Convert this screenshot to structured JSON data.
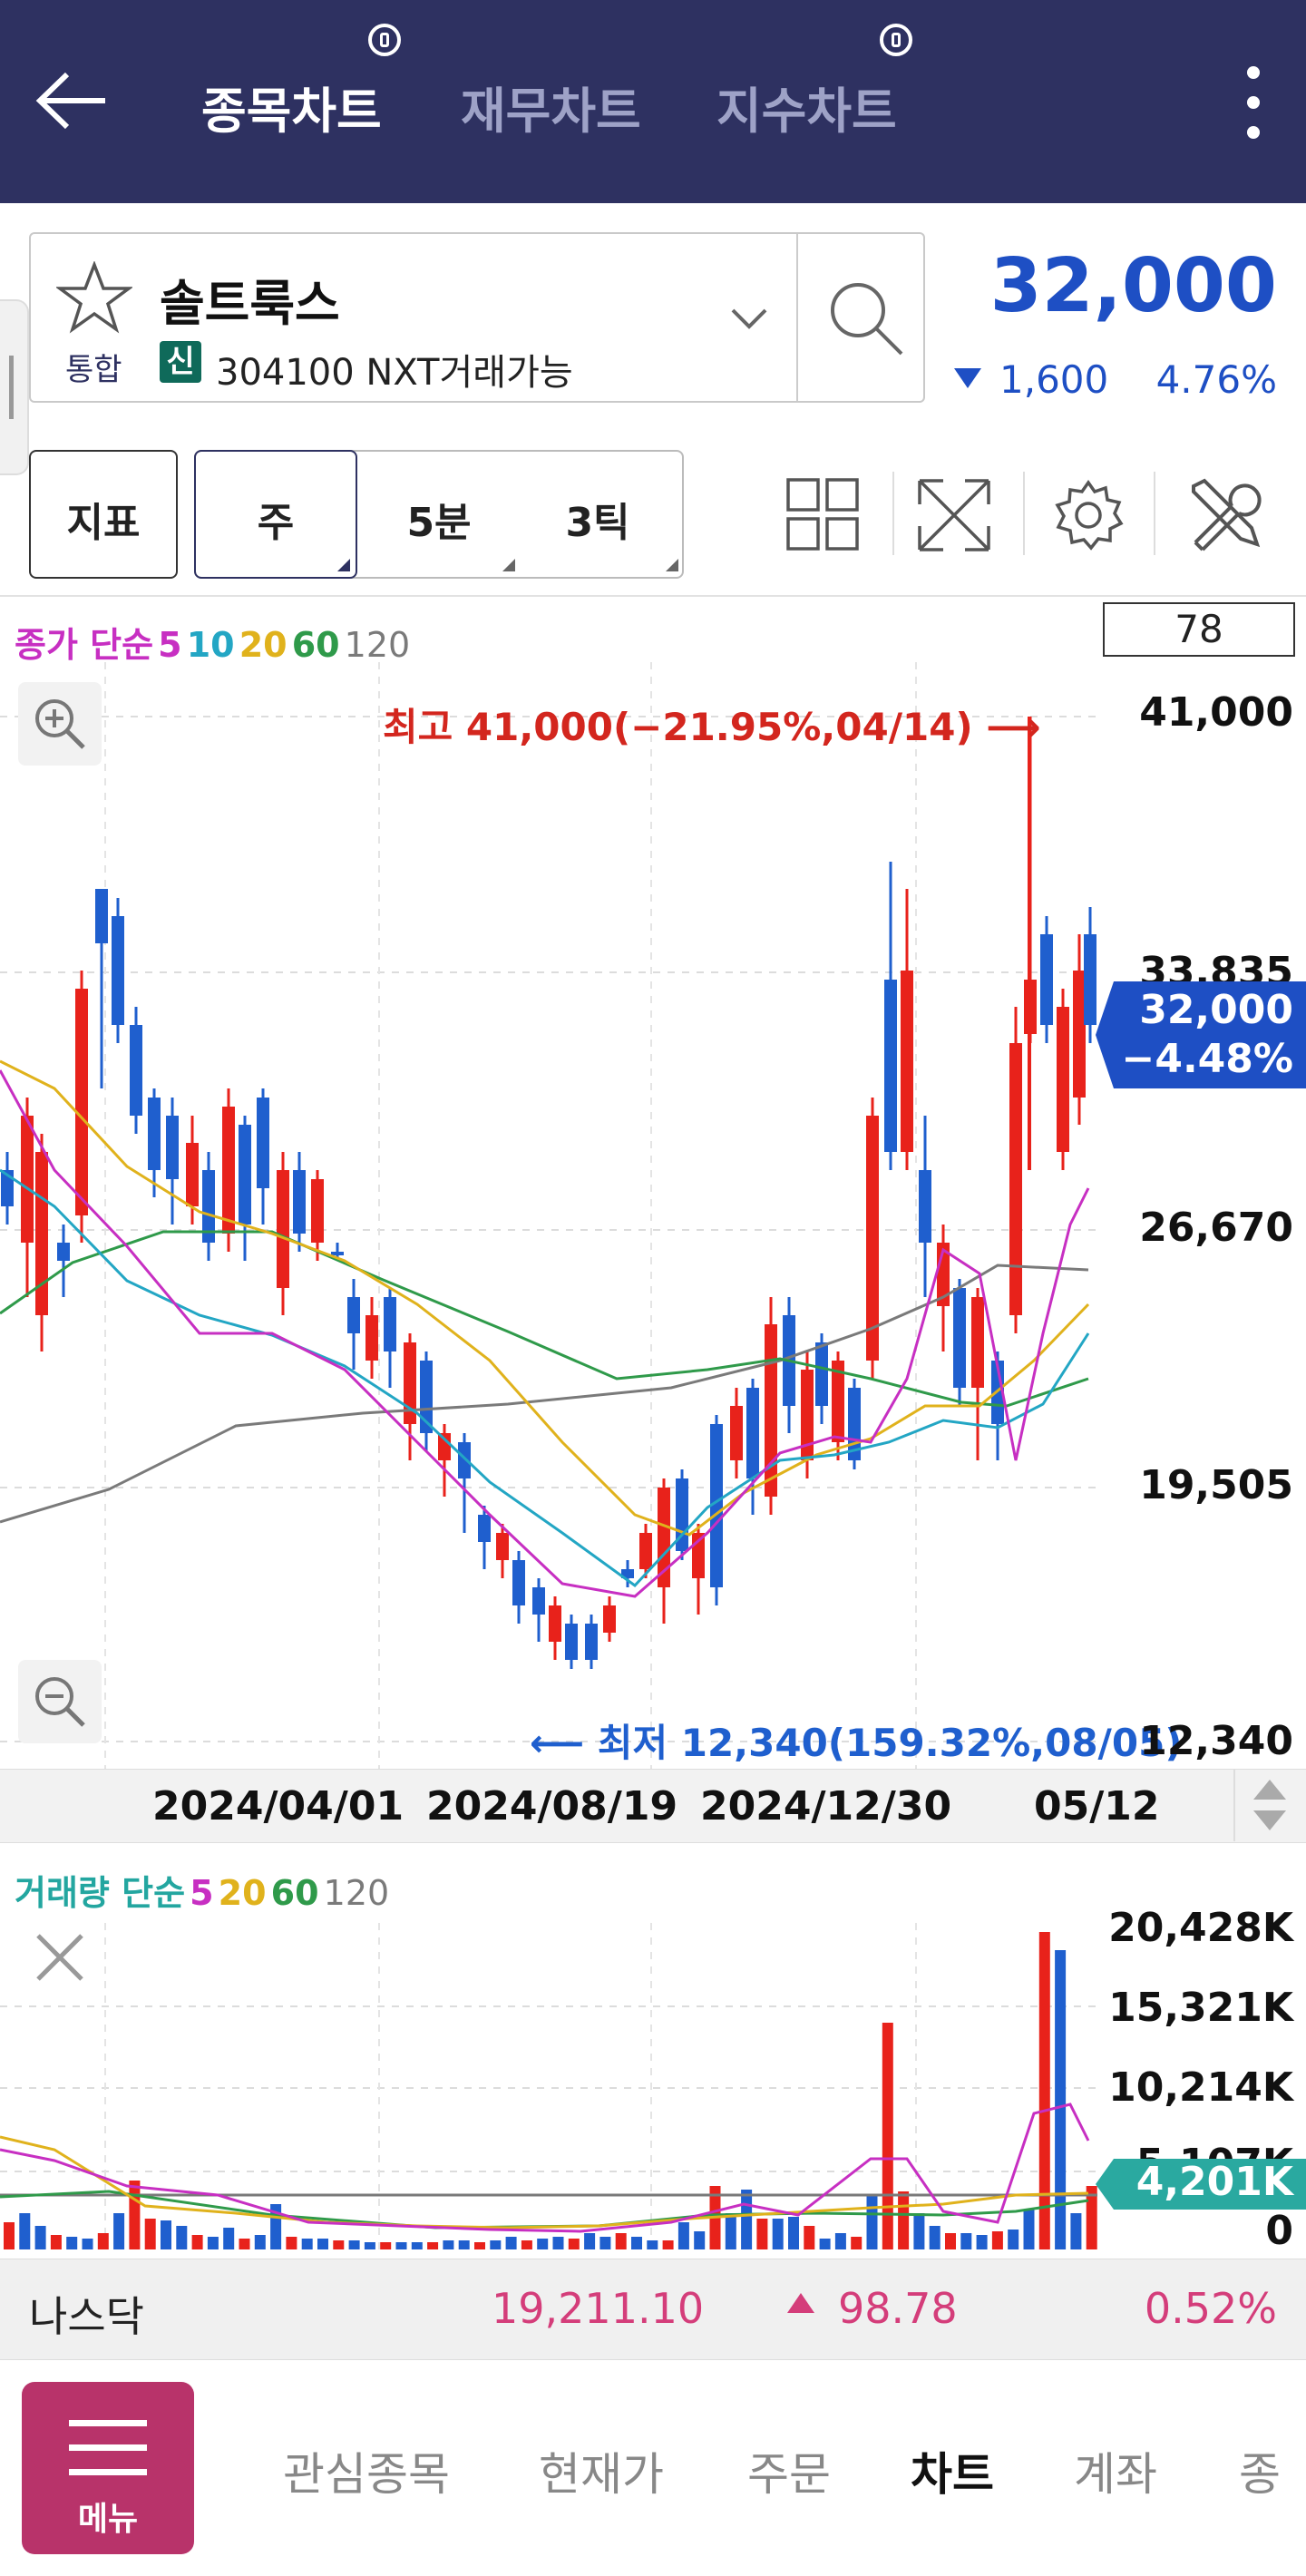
{
  "header": {
    "tabs": [
      {
        "label": "종목차트",
        "active": true
      },
      {
        "label": "재무차트",
        "active": false
      },
      {
        "label": "지수차트",
        "active": false
      }
    ]
  },
  "stock": {
    "name": "솔트룩스",
    "market": "통합",
    "credit_badge": "신",
    "code_info": "304100 NXT거래가능",
    "price": "32,000",
    "change": "1,600",
    "change_pct": "4.76%"
  },
  "toolbar": {
    "indicator_label": "지표",
    "period_week": "주",
    "period_min": "5분",
    "period_tick": "3틱"
  },
  "price_chart": {
    "legend_prefix": "종가 단순",
    "legend_ma": [
      "5",
      "10",
      "20",
      "60",
      "120"
    ],
    "count_box": "78",
    "high_label": "최고 41,000(−21.95%,04/14) ⟶",
    "low_label": "⟵ 최저 12,340(159.32%,08/05)",
    "y_ticks": [
      "41,000",
      "33,835",
      "26,670",
      "19,505",
      "12,340"
    ],
    "current_price": "32,000",
    "current_pct": "−4.48%",
    "x_ticks": [
      "2024/04/01",
      "2024/08/19",
      "2024/12/30",
      "05/12"
    ]
  },
  "volume_chart": {
    "legend_prefix": "거래량 단순",
    "legend_ma": [
      "5",
      "20",
      "60",
      "120"
    ],
    "y_ticks": [
      "20,428K",
      "15,321K",
      "10,214K",
      "5,107K",
      "0"
    ],
    "current_volume": "4,201K"
  },
  "index_ticker": {
    "name": "나스닥",
    "value": "19,211.10",
    "change": "98.78",
    "change_pct": "0.52%"
  },
  "bottom_nav": {
    "menu_label": "메뉴",
    "items": [
      "관심종목",
      "현재가",
      "주문",
      "차트",
      "계좌",
      "종"
    ],
    "active": "차트"
  },
  "colors": {
    "header_bg": "#2e3161",
    "up_red": "#e8221b",
    "down_blue": "#1f5fce",
    "price_blue": "#1e4fc4",
    "ma5": "#c72fc2",
    "ma10": "#23a6c4",
    "ma20": "#e0b21c",
    "ma60": "#2f9a4a",
    "ma120": "#7a7a7a",
    "menu_bg": "#b8336a"
  }
}
